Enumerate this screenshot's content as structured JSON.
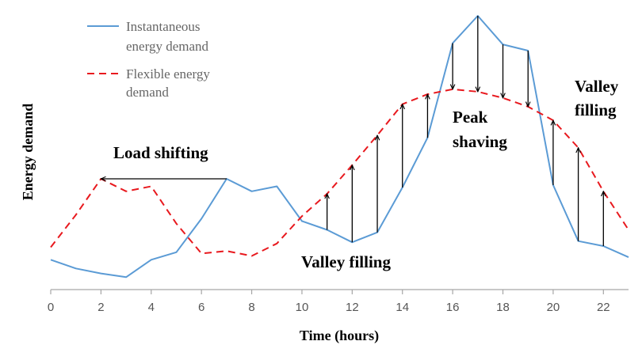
{
  "chart_data": {
    "type": "line",
    "title": "",
    "xlabel": "Time (hours)",
    "ylabel": "Energy demand",
    "xlim": [
      0,
      23
    ],
    "ylim": [
      0,
      11
    ],
    "x_ticks": [
      0,
      2,
      4,
      6,
      8,
      10,
      12,
      14,
      16,
      18,
      20,
      22
    ],
    "grid": false,
    "legend_position": "top-left",
    "series": [
      {
        "name": "Instantaneous energy demand",
        "legend_lines": [
          "Instantaneous",
          "energy demand"
        ],
        "style": "solid",
        "color": "#5b9bd5",
        "x": [
          0,
          1,
          2,
          3,
          4,
          5,
          6,
          7,
          8,
          9,
          10,
          11,
          12,
          13,
          14,
          15,
          16,
          17,
          18,
          19,
          20,
          21,
          22,
          23
        ],
        "values": [
          1.2,
          0.85,
          0.65,
          0.5,
          1.2,
          1.5,
          2.85,
          4.45,
          3.95,
          4.15,
          2.75,
          2.4,
          1.9,
          2.3,
          4.1,
          6.1,
          9.9,
          11.0,
          9.85,
          9.6,
          4.2,
          1.95,
          1.75,
          1.3
        ]
      },
      {
        "name": "Flexible energy demand",
        "legend_lines": [
          "Flexible energy",
          "demand"
        ],
        "style": "dashed",
        "color": "#e8191e",
        "x": [
          0,
          1,
          2,
          3,
          4,
          5,
          6,
          7,
          8,
          9,
          10,
          11,
          12,
          13,
          14,
          15,
          16,
          17,
          18,
          19,
          20,
          21,
          22,
          23
        ],
        "values": [
          1.7,
          3.0,
          4.45,
          3.95,
          4.15,
          2.65,
          1.45,
          1.55,
          1.35,
          1.85,
          2.95,
          3.85,
          5.0,
          6.2,
          7.45,
          7.85,
          8.05,
          7.95,
          7.7,
          7.35,
          6.8,
          5.7,
          3.95,
          2.4
        ]
      }
    ],
    "annotations": [
      {
        "id": "load-shifting",
        "text": "Load shifting",
        "lines": [
          "Load shifting"
        ],
        "from_x": 7,
        "to_x": 2
      },
      {
        "id": "valley-filling-mid",
        "text": "Valley filling",
        "lines": [
          "Valley filling"
        ],
        "arrow_hours": [
          11,
          12,
          13,
          14,
          15
        ]
      },
      {
        "id": "peak-shaving",
        "text": "Peak shaving",
        "lines": [
          "Peak",
          "shaving"
        ],
        "arrow_hours": [
          16,
          17,
          18,
          19
        ]
      },
      {
        "id": "valley-filling-right",
        "text": "Valley filling",
        "lines": [
          "Valley",
          "filling"
        ],
        "arrow_hours": [
          20,
          21,
          22
        ]
      }
    ]
  }
}
